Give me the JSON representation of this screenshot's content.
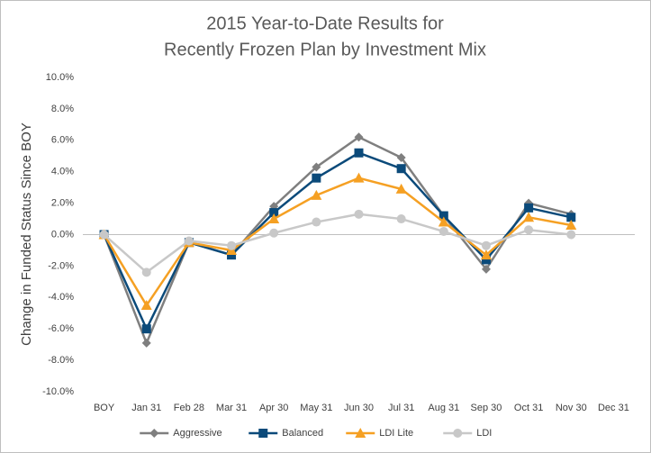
{
  "chart_data": {
    "type": "line",
    "title": [
      "2015 Year-to-Date Results for",
      "Recently Frozen Plan by Investment Mix"
    ],
    "y_label": "Change in Funded Status Since BOY",
    "categories": [
      "BOY",
      "Jan 31",
      "Feb 28",
      "Mar 31",
      "Apr 30",
      "May 31",
      "Jun 30",
      "Jul 31",
      "Aug 31",
      "Sep 30",
      "Oct 31",
      "Nov 30",
      "Dec 31"
    ],
    "series": [
      {
        "name": "Aggressive",
        "color": "#7f7f7f",
        "marker": "diamond",
        "values": [
          0,
          -6.9,
          -0.5,
          -1.3,
          1.8,
          4.3,
          6.2,
          4.9,
          1.2,
          -2.2,
          2.0,
          1.3,
          null
        ]
      },
      {
        "name": "Balanced",
        "color": "#0b4a7a",
        "marker": "square",
        "values": [
          0,
          -6.0,
          -0.5,
          -1.3,
          1.4,
          3.6,
          5.2,
          4.2,
          1.2,
          -1.6,
          1.7,
          1.1,
          null
        ]
      },
      {
        "name": "LDI Lite",
        "color": "#f5a023",
        "marker": "triangle",
        "values": [
          0,
          -4.5,
          -0.5,
          -1.0,
          1.0,
          2.5,
          3.6,
          2.9,
          0.8,
          -1.3,
          1.1,
          0.6,
          null
        ]
      },
      {
        "name": "LDI",
        "color": "#c8c8c8",
        "marker": "circle",
        "values": [
          0,
          -2.4,
          -0.4,
          -0.7,
          0.1,
          0.8,
          1.3,
          1.0,
          0.2,
          -0.7,
          0.3,
          0.0,
          null
        ]
      }
    ],
    "ylim": [
      -10,
      10
    ],
    "yticks": [
      {
        "value": 10,
        "label": "10.0%"
      },
      {
        "value": 8,
        "label": "8.0%"
      },
      {
        "value": 6,
        "label": "6.0%"
      },
      {
        "value": 4,
        "label": "4.0%"
      },
      {
        "value": 2,
        "label": "2.0%"
      },
      {
        "value": 0,
        "label": "0.0%"
      },
      {
        "value": -2,
        "label": "-2.0%"
      },
      {
        "value": -4,
        "label": "-4.0%"
      },
      {
        "value": -6,
        "label": "-6.0%"
      },
      {
        "value": -8,
        "label": "-8.0%"
      },
      {
        "value": -10,
        "label": "-10.0%"
      }
    ],
    "grid": false,
    "legend": "bottom"
  }
}
